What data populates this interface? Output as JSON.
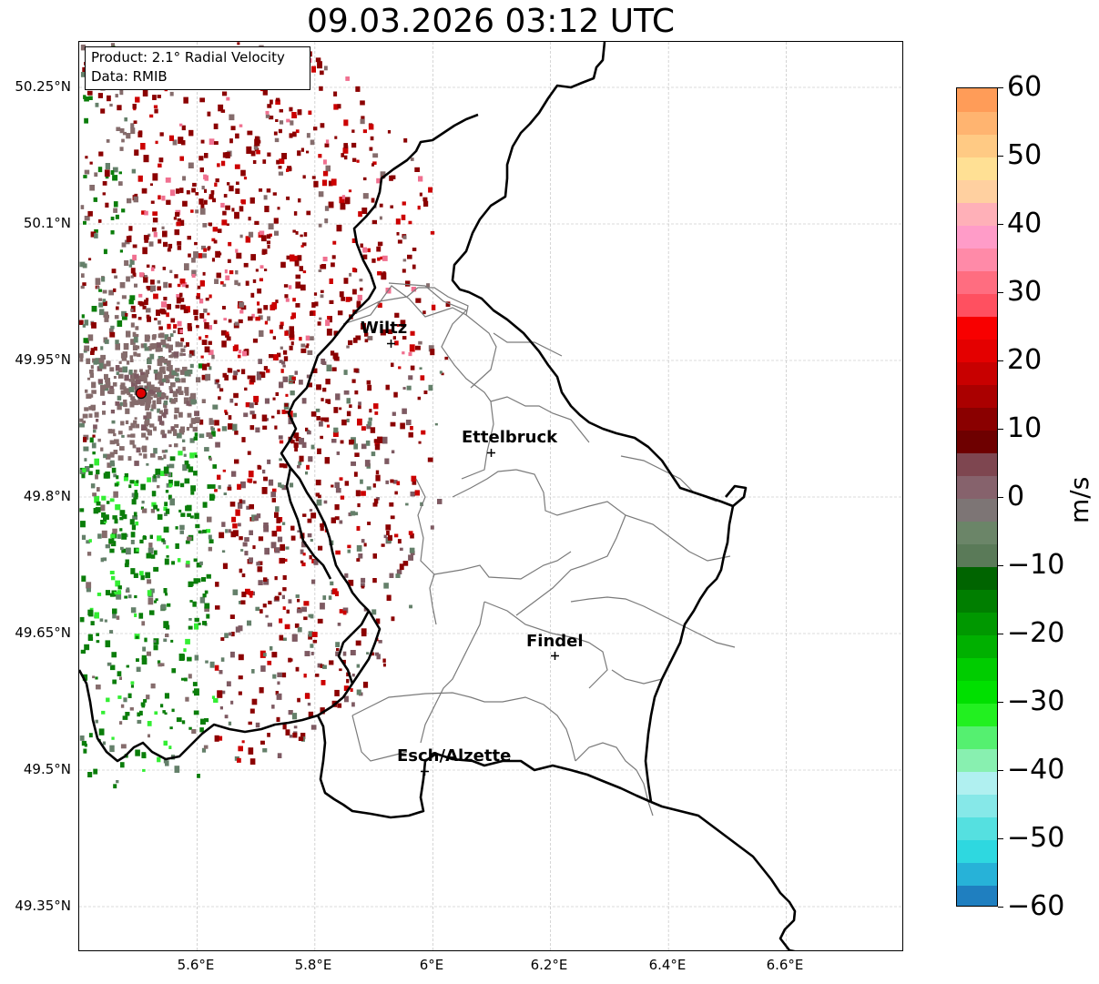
{
  "title": "09.03.2026 03:12 UTC",
  "info_box": {
    "product": "Product: 2.1° Radial Velocity",
    "source": "Data: RMIB"
  },
  "lat_labels": [
    "50.25°N",
    "50.1°N",
    "49.95°N",
    "49.8°N",
    "49.65°N",
    "49.5°N",
    "49.35°N"
  ],
  "lon_labels": [
    "5.6°E",
    "5.8°E",
    "6°E",
    "6.2°E",
    "6.4°E",
    "6.6°E"
  ],
  "extent": {
    "lon_min": 5.4,
    "lon_max": 6.8,
    "lat_min": 49.3,
    "lat_max": 50.3
  },
  "radar_site": {
    "lon": 5.505,
    "lat": 49.914,
    "color": "#e00000"
  },
  "cities": [
    {
      "name": "Wiltz",
      "lon": 5.932,
      "lat": 49.966
    },
    {
      "name": "Ettelbruck",
      "lon": 6.104,
      "lat": 49.847
    },
    {
      "name": "Findel",
      "lon": 6.212,
      "lat": 49.626
    },
    {
      "name": "Esch/Alzette",
      "lon": 5.98,
      "lat": 49.497
    }
  ],
  "colorbar": {
    "unit": "m/s",
    "min": -60,
    "max": 60,
    "tick_labels": [
      "60",
      "50",
      "40",
      "30",
      "20",
      "10",
      "0",
      "−10",
      "−20",
      "−30",
      "−40",
      "−50",
      "−60"
    ],
    "tick_values": [
      60,
      50,
      40,
      30,
      20,
      10,
      0,
      -10,
      -20,
      -30,
      -40,
      -50,
      -60
    ],
    "colors": [
      "#1f7fc0",
      "#27b2d8",
      "#2ed8e0",
      "#55e0e0",
      "#86e8e8",
      "#b0f0f0",
      "#88f0b0",
      "#55f070",
      "#22f020",
      "#00e000",
      "#00cc00",
      "#00b000",
      "#009800",
      "#007e00",
      "#006400",
      "#5a7a58",
      "#6b8568",
      "#7d7575",
      "#86626c",
      "#7e4650",
      "#6e0000",
      "#8a0000",
      "#aa0000",
      "#c80000",
      "#e40000",
      "#f80000",
      "#ff5060",
      "#ff6d80",
      "#ff8aa8",
      "#ff9cc8",
      "#ffb0b8",
      "#ffd0a0",
      "#ffe094",
      "#ffca84",
      "#ffb470",
      "#ff9c58"
    ]
  },
  "velocity_palette": {
    "dark_red": "#8b0000",
    "red": "#cc0000",
    "gray_mauve": "#856c6c",
    "mauve": "#7e5a62",
    "gray_green": "#64806a",
    "green": "#0a7d0a",
    "bright_green": "#33ee33",
    "pink": "#f07090",
    "cyan": "#8fe4e4"
  }
}
